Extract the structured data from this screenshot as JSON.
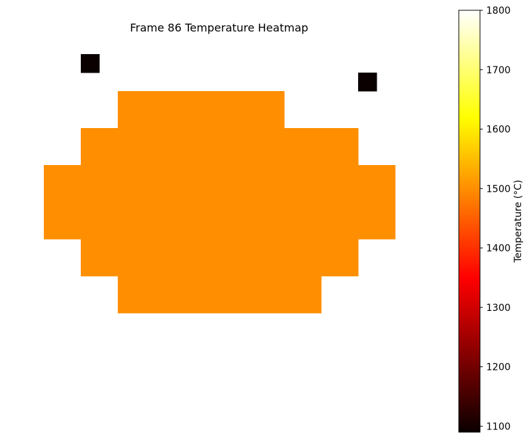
{
  "chart_data": {
    "type": "heatmap",
    "title": "Frame 86 Temperature Heatmap",
    "grid_size": [
      20,
      20
    ],
    "axes_visible": false,
    "background_value": null,
    "cells": [
      {
        "row": 2,
        "col": 2,
        "value": 1100
      },
      {
        "row": 3,
        "col": 17,
        "value": 1100
      },
      {
        "row": 4,
        "col": 4,
        "value": 1500
      },
      {
        "row": 4,
        "col": 5,
        "value": 1500
      },
      {
        "row": 4,
        "col": 6,
        "value": 1500
      },
      {
        "row": 4,
        "col": 7,
        "value": 1500
      },
      {
        "row": 4,
        "col": 8,
        "value": 1500
      },
      {
        "row": 4,
        "col": 9,
        "value": 1500
      },
      {
        "row": 4,
        "col": 10,
        "value": 1500
      },
      {
        "row": 4,
        "col": 11,
        "value": 1500
      },
      {
        "row": 4,
        "col": 12,
        "value": 1500
      },
      {
        "row": 5,
        "col": 4,
        "value": 1500
      },
      {
        "row": 5,
        "col": 5,
        "value": 1500
      },
      {
        "row": 5,
        "col": 6,
        "value": 1500
      },
      {
        "row": 5,
        "col": 7,
        "value": 1500
      },
      {
        "row": 5,
        "col": 8,
        "value": 1500
      },
      {
        "row": 5,
        "col": 9,
        "value": 1500
      },
      {
        "row": 5,
        "col": 10,
        "value": 1500
      },
      {
        "row": 5,
        "col": 11,
        "value": 1500
      },
      {
        "row": 5,
        "col": 12,
        "value": 1500
      },
      {
        "row": 6,
        "col": 2,
        "value": 1500
      },
      {
        "row": 6,
        "col": 3,
        "value": 1500
      },
      {
        "row": 6,
        "col": 4,
        "value": 1500
      },
      {
        "row": 6,
        "col": 5,
        "value": 1500
      },
      {
        "row": 6,
        "col": 6,
        "value": 1500
      },
      {
        "row": 6,
        "col": 7,
        "value": 1500
      },
      {
        "row": 6,
        "col": 8,
        "value": 1500
      },
      {
        "row": 6,
        "col": 9,
        "value": 1500
      },
      {
        "row": 6,
        "col": 10,
        "value": 1500
      },
      {
        "row": 6,
        "col": 11,
        "value": 1500
      },
      {
        "row": 6,
        "col": 12,
        "value": 1500
      },
      {
        "row": 6,
        "col": 13,
        "value": 1500
      },
      {
        "row": 6,
        "col": 14,
        "value": 1500
      },
      {
        "row": 6,
        "col": 15,
        "value": 1500
      },
      {
        "row": 6,
        "col": 16,
        "value": 1500
      },
      {
        "row": 7,
        "col": 2,
        "value": 1500
      },
      {
        "row": 7,
        "col": 3,
        "value": 1500
      },
      {
        "row": 7,
        "col": 4,
        "value": 1500
      },
      {
        "row": 7,
        "col": 5,
        "value": 1500
      },
      {
        "row": 7,
        "col": 6,
        "value": 1500
      },
      {
        "row": 7,
        "col": 7,
        "value": 1500
      },
      {
        "row": 7,
        "col": 8,
        "value": 1500
      },
      {
        "row": 7,
        "col": 9,
        "value": 1500
      },
      {
        "row": 7,
        "col": 10,
        "value": 1500
      },
      {
        "row": 7,
        "col": 11,
        "value": 1500
      },
      {
        "row": 7,
        "col": 12,
        "value": 1500
      },
      {
        "row": 7,
        "col": 13,
        "value": 1500
      },
      {
        "row": 7,
        "col": 14,
        "value": 1500
      },
      {
        "row": 7,
        "col": 15,
        "value": 1500
      },
      {
        "row": 7,
        "col": 16,
        "value": 1500
      },
      {
        "row": 8,
        "col": 0,
        "value": 1500
      },
      {
        "row": 8,
        "col": 1,
        "value": 1500
      },
      {
        "row": 8,
        "col": 2,
        "value": 1500
      },
      {
        "row": 8,
        "col": 3,
        "value": 1500
      },
      {
        "row": 8,
        "col": 4,
        "value": 1500
      },
      {
        "row": 8,
        "col": 5,
        "value": 1500
      },
      {
        "row": 8,
        "col": 6,
        "value": 1500
      },
      {
        "row": 8,
        "col": 7,
        "value": 1500
      },
      {
        "row": 8,
        "col": 8,
        "value": 1500
      },
      {
        "row": 8,
        "col": 9,
        "value": 1500
      },
      {
        "row": 8,
        "col": 10,
        "value": 1500
      },
      {
        "row": 8,
        "col": 11,
        "value": 1500
      },
      {
        "row": 8,
        "col": 12,
        "value": 1500
      },
      {
        "row": 8,
        "col": 13,
        "value": 1500
      },
      {
        "row": 8,
        "col": 14,
        "value": 1500
      },
      {
        "row": 8,
        "col": 15,
        "value": 1500
      },
      {
        "row": 8,
        "col": 16,
        "value": 1500
      },
      {
        "row": 8,
        "col": 17,
        "value": 1500
      },
      {
        "row": 8,
        "col": 18,
        "value": 1500
      },
      {
        "row": 9,
        "col": 0,
        "value": 1500
      },
      {
        "row": 9,
        "col": 1,
        "value": 1500
      },
      {
        "row": 9,
        "col": 2,
        "value": 1500
      },
      {
        "row": 9,
        "col": 3,
        "value": 1500
      },
      {
        "row": 9,
        "col": 4,
        "value": 1500
      },
      {
        "row": 9,
        "col": 5,
        "value": 1500
      },
      {
        "row": 9,
        "col": 6,
        "value": 1500
      },
      {
        "row": 9,
        "col": 7,
        "value": 1500
      },
      {
        "row": 9,
        "col": 8,
        "value": 1500
      },
      {
        "row": 9,
        "col": 9,
        "value": 1500
      },
      {
        "row": 9,
        "col": 10,
        "value": 1500
      },
      {
        "row": 9,
        "col": 11,
        "value": 1500
      },
      {
        "row": 9,
        "col": 12,
        "value": 1500
      },
      {
        "row": 9,
        "col": 13,
        "value": 1500
      },
      {
        "row": 9,
        "col": 14,
        "value": 1500
      },
      {
        "row": 9,
        "col": 15,
        "value": 1500
      },
      {
        "row": 9,
        "col": 16,
        "value": 1500
      },
      {
        "row": 9,
        "col": 17,
        "value": 1500
      },
      {
        "row": 9,
        "col": 18,
        "value": 1500
      },
      {
        "row": 10,
        "col": 0,
        "value": 1500
      },
      {
        "row": 10,
        "col": 1,
        "value": 1500
      },
      {
        "row": 10,
        "col": 2,
        "value": 1500
      },
      {
        "row": 10,
        "col": 3,
        "value": 1500
      },
      {
        "row": 10,
        "col": 4,
        "value": 1500
      },
      {
        "row": 10,
        "col": 5,
        "value": 1500
      },
      {
        "row": 10,
        "col": 6,
        "value": 1500
      },
      {
        "row": 10,
        "col": 7,
        "value": 1500
      },
      {
        "row": 10,
        "col": 8,
        "value": 1500
      },
      {
        "row": 10,
        "col": 9,
        "value": 1500
      },
      {
        "row": 10,
        "col": 10,
        "value": 1500
      },
      {
        "row": 10,
        "col": 11,
        "value": 1500
      },
      {
        "row": 10,
        "col": 12,
        "value": 1500
      },
      {
        "row": 10,
        "col": 13,
        "value": 1500
      },
      {
        "row": 10,
        "col": 14,
        "value": 1500
      },
      {
        "row": 10,
        "col": 15,
        "value": 1500
      },
      {
        "row": 10,
        "col": 16,
        "value": 1500
      },
      {
        "row": 10,
        "col": 17,
        "value": 1500
      },
      {
        "row": 10,
        "col": 18,
        "value": 1500
      },
      {
        "row": 11,
        "col": 0,
        "value": 1500
      },
      {
        "row": 11,
        "col": 1,
        "value": 1500
      },
      {
        "row": 11,
        "col": 2,
        "value": 1500
      },
      {
        "row": 11,
        "col": 3,
        "value": 1500
      },
      {
        "row": 11,
        "col": 4,
        "value": 1500
      },
      {
        "row": 11,
        "col": 5,
        "value": 1500
      },
      {
        "row": 11,
        "col": 6,
        "value": 1500
      },
      {
        "row": 11,
        "col": 7,
        "value": 1500
      },
      {
        "row": 11,
        "col": 8,
        "value": 1500
      },
      {
        "row": 11,
        "col": 9,
        "value": 1500
      },
      {
        "row": 11,
        "col": 10,
        "value": 1500
      },
      {
        "row": 11,
        "col": 11,
        "value": 1500
      },
      {
        "row": 11,
        "col": 12,
        "value": 1500
      },
      {
        "row": 11,
        "col": 13,
        "value": 1500
      },
      {
        "row": 11,
        "col": 14,
        "value": 1500
      },
      {
        "row": 11,
        "col": 15,
        "value": 1500
      },
      {
        "row": 11,
        "col": 16,
        "value": 1500
      },
      {
        "row": 11,
        "col": 17,
        "value": 1500
      },
      {
        "row": 11,
        "col": 18,
        "value": 1500
      },
      {
        "row": 12,
        "col": 2,
        "value": 1500
      },
      {
        "row": 12,
        "col": 3,
        "value": 1500
      },
      {
        "row": 12,
        "col": 4,
        "value": 1500
      },
      {
        "row": 12,
        "col": 5,
        "value": 1500
      },
      {
        "row": 12,
        "col": 6,
        "value": 1500
      },
      {
        "row": 12,
        "col": 7,
        "value": 1500
      },
      {
        "row": 12,
        "col": 8,
        "value": 1500
      },
      {
        "row": 12,
        "col": 9,
        "value": 1500
      },
      {
        "row": 12,
        "col": 10,
        "value": 1500
      },
      {
        "row": 12,
        "col": 11,
        "value": 1500
      },
      {
        "row": 12,
        "col": 12,
        "value": 1500
      },
      {
        "row": 12,
        "col": 13,
        "value": 1500
      },
      {
        "row": 12,
        "col": 14,
        "value": 1500
      },
      {
        "row": 12,
        "col": 15,
        "value": 1500
      },
      {
        "row": 12,
        "col": 16,
        "value": 1500
      },
      {
        "row": 13,
        "col": 2,
        "value": 1500
      },
      {
        "row": 13,
        "col": 3,
        "value": 1500
      },
      {
        "row": 13,
        "col": 4,
        "value": 1500
      },
      {
        "row": 13,
        "col": 5,
        "value": 1500
      },
      {
        "row": 13,
        "col": 6,
        "value": 1500
      },
      {
        "row": 13,
        "col": 7,
        "value": 1500
      },
      {
        "row": 13,
        "col": 8,
        "value": 1500
      },
      {
        "row": 13,
        "col": 9,
        "value": 1500
      },
      {
        "row": 13,
        "col": 10,
        "value": 1500
      },
      {
        "row": 13,
        "col": 11,
        "value": 1500
      },
      {
        "row": 13,
        "col": 12,
        "value": 1500
      },
      {
        "row": 13,
        "col": 13,
        "value": 1500
      },
      {
        "row": 13,
        "col": 14,
        "value": 1500
      },
      {
        "row": 13,
        "col": 15,
        "value": 1500
      },
      {
        "row": 13,
        "col": 16,
        "value": 1500
      },
      {
        "row": 14,
        "col": 4,
        "value": 1500
      },
      {
        "row": 14,
        "col": 5,
        "value": 1500
      },
      {
        "row": 14,
        "col": 6,
        "value": 1500
      },
      {
        "row": 14,
        "col": 7,
        "value": 1500
      },
      {
        "row": 14,
        "col": 8,
        "value": 1500
      },
      {
        "row": 14,
        "col": 9,
        "value": 1500
      },
      {
        "row": 14,
        "col": 10,
        "value": 1500
      },
      {
        "row": 14,
        "col": 11,
        "value": 1500
      },
      {
        "row": 14,
        "col": 12,
        "value": 1500
      },
      {
        "row": 14,
        "col": 13,
        "value": 1500
      },
      {
        "row": 14,
        "col": 14,
        "value": 1500
      },
      {
        "row": 15,
        "col": 4,
        "value": 1500
      },
      {
        "row": 15,
        "col": 5,
        "value": 1500
      },
      {
        "row": 15,
        "col": 6,
        "value": 1500
      },
      {
        "row": 15,
        "col": 7,
        "value": 1500
      },
      {
        "row": 15,
        "col": 8,
        "value": 1500
      },
      {
        "row": 15,
        "col": 9,
        "value": 1500
      },
      {
        "row": 15,
        "col": 10,
        "value": 1500
      },
      {
        "row": 15,
        "col": 11,
        "value": 1500
      },
      {
        "row": 15,
        "col": 12,
        "value": 1500
      },
      {
        "row": 15,
        "col": 13,
        "value": 1500
      },
      {
        "row": 15,
        "col": 14,
        "value": 1500
      }
    ],
    "colorbar": {
      "label": "Temperature (°C)",
      "colormap": "hot",
      "vmin": 1090,
      "vmax": 1800,
      "ticks": [
        1100,
        1200,
        1300,
        1400,
        1500,
        1600,
        1700,
        1800
      ],
      "tick_labels": [
        "1100",
        "1200",
        "1300",
        "1400",
        "1500",
        "1600",
        "1700",
        "1800"
      ]
    }
  }
}
